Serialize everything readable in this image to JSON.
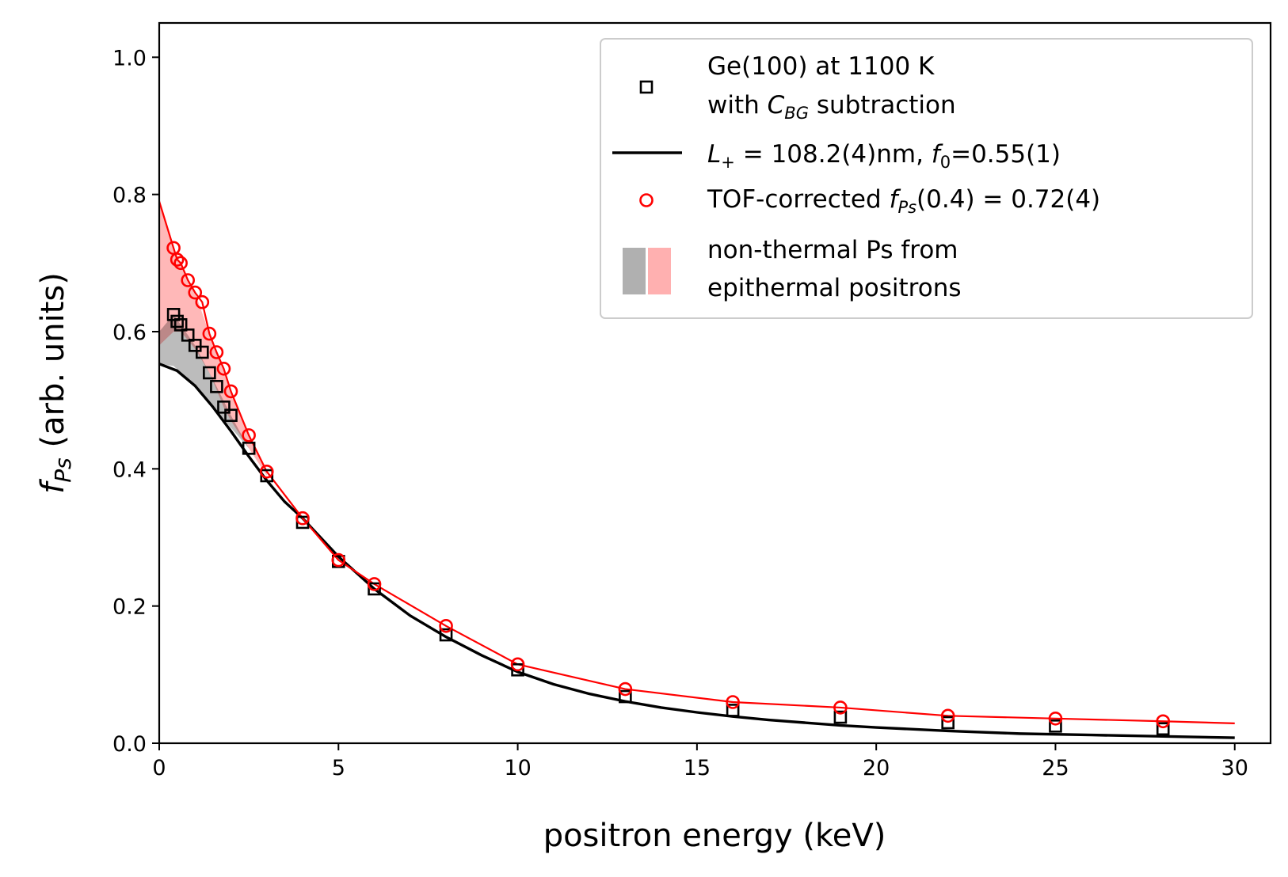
{
  "chart_data": {
    "type": "scatter",
    "title": "",
    "xlabel": "positron energy (keV)",
    "ylabel": {
      "var": "f",
      "sub": "Ps",
      "rest": " (arb. units)"
    },
    "xlim": [
      0,
      31
    ],
    "ylim": [
      0,
      1.05
    ],
    "xticks": [
      0,
      5,
      10,
      15,
      20,
      25,
      30
    ],
    "xtick_labels": [
      "0",
      "5",
      "10",
      "15",
      "20",
      "25",
      "30"
    ],
    "yticks": [
      0.0,
      0.2,
      0.4,
      0.6,
      0.8,
      1.0
    ],
    "ytick_labels": [
      "0.0",
      "0.2",
      "0.4",
      "0.6",
      "0.8",
      "1.0"
    ],
    "grid": false,
    "legend_position": "top-right",
    "colors": {
      "data": "#000000",
      "fit": "#000000",
      "tof": "#ff0000",
      "band_gray": "#b0b0b0",
      "band_red": "#ffb0b0"
    },
    "series": [
      {
        "name": "Ge(100) at 1100 K with C_BG subtraction",
        "kind": "scatter-square",
        "x": [
          0.4,
          0.5,
          0.6,
          0.8,
          1.0,
          1.2,
          1.4,
          1.6,
          1.8,
          2.0,
          2.5,
          3,
          4,
          5,
          6,
          8,
          10,
          13,
          16,
          19,
          22,
          25,
          28
        ],
        "y": [
          0.625,
          0.615,
          0.61,
          0.595,
          0.58,
          0.57,
          0.54,
          0.52,
          0.49,
          0.478,
          0.43,
          0.39,
          0.322,
          0.265,
          0.225,
          0.158,
          0.107,
          0.068,
          0.048,
          0.038,
          0.03,
          0.025,
          0.021
        ]
      },
      {
        "name": "L+ = 108.2(4)nm, f0=0.55(1)",
        "kind": "line",
        "x": [
          0,
          0.5,
          1,
          1.5,
          2,
          2.5,
          3,
          3.5,
          4,
          4.5,
          5,
          6,
          7,
          8,
          9,
          10,
          11,
          12,
          13,
          14,
          15,
          16,
          17,
          18,
          19,
          20,
          22,
          24,
          26,
          28,
          30
        ],
        "y": [
          0.553,
          0.543,
          0.521,
          0.49,
          0.455,
          0.418,
          0.383,
          0.352,
          0.328,
          0.3,
          0.272,
          0.225,
          0.186,
          0.155,
          0.128,
          0.104,
          0.086,
          0.072,
          0.061,
          0.052,
          0.045,
          0.039,
          0.034,
          0.03,
          0.026,
          0.023,
          0.018,
          0.014,
          0.012,
          0.01,
          0.008
        ]
      },
      {
        "name": "TOF-corrected fPs(0.4) = 0.72(4)",
        "kind": "line-circle",
        "x": [
          0.4,
          0.5,
          0.6,
          0.8,
          1.0,
          1.2,
          1.4,
          1.6,
          1.8,
          2.0,
          2.5,
          3,
          4,
          5,
          6,
          8,
          10,
          13,
          16,
          19,
          22,
          25,
          28
        ],
        "y": [
          0.722,
          0.705,
          0.7,
          0.675,
          0.657,
          0.643,
          0.597,
          0.57,
          0.546,
          0.513,
          0.449,
          0.396,
          0.328,
          0.267,
          0.232,
          0.171,
          0.115,
          0.079,
          0.06,
          0.052,
          0.04,
          0.036,
          0.032
        ],
        "line_extension": {
          "x": [
            0,
            30
          ],
          "y": [
            0.79,
            0.029
          ]
        }
      }
    ],
    "bands": [
      {
        "name": "non-thermal Ps (gray)",
        "x": [
          0,
          0.4,
          1,
          1.6,
          2.0,
          2.5,
          3
        ],
        "lower": [
          0.553,
          0.55,
          0.521,
          0.483,
          0.46,
          0.43,
          0.39
        ],
        "upper": [
          0.6,
          0.625,
          0.58,
          0.52,
          0.478,
          0.43,
          0.39
        ]
      },
      {
        "name": "non-thermal Ps (red)",
        "x": [
          0,
          0.4,
          0.6,
          1.0,
          1.4,
          1.8,
          2.0,
          2.5,
          3
        ],
        "lower": [
          0.58,
          0.6,
          0.6,
          0.575,
          0.54,
          0.49,
          0.47,
          0.43,
          0.39
        ],
        "upper": [
          0.79,
          0.722,
          0.7,
          0.657,
          0.597,
          0.546,
          0.513,
          0.449,
          0.396
        ]
      }
    ],
    "legend": [
      {
        "kind": "square",
        "lines": [
          {
            "parts": [
              "Ge(100) at 1100 K"
            ]
          },
          {
            "parts": [
              "with ",
              "C",
              "BG",
              " subtraction"
            ]
          }
        ]
      },
      {
        "kind": "line",
        "lines": [
          {
            "parts": [
              "L",
              "+",
              " = 108.2(4)nm, ",
              "f",
              "0",
              "=0.55(1)"
            ]
          }
        ]
      },
      {
        "kind": "circle",
        "lines": [
          {
            "parts": [
              "TOF-corrected ",
              "f",
              "Ps",
              "(0.4) = 0.72(4)"
            ]
          }
        ]
      },
      {
        "kind": "bands",
        "lines": [
          {
            "parts": [
              "non-thermal Ps from"
            ]
          },
          {
            "parts": [
              "epithermal positrons"
            ]
          }
        ]
      }
    ]
  }
}
